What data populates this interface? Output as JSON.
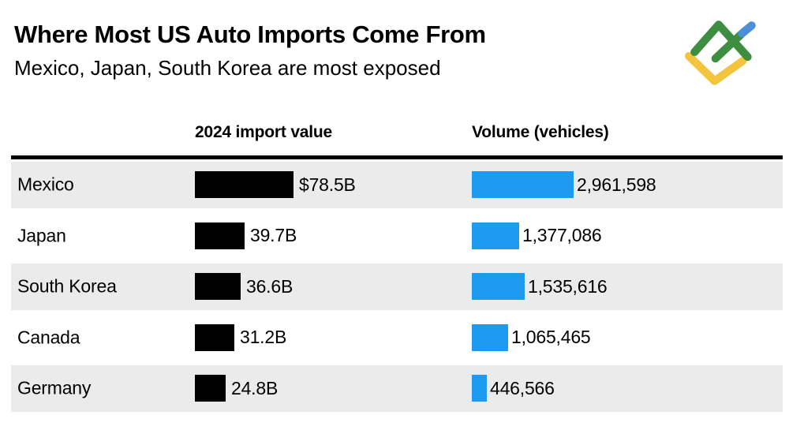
{
  "header": {
    "title": "Where Most US Auto Imports Come From",
    "subtitle": "Mexico, Japan, South Korea are most exposed"
  },
  "logo": {
    "name": "litefinance-logo",
    "colors": {
      "green": "#3e8e41",
      "yellow": "#f3c43e",
      "blue": "#4a90d8"
    }
  },
  "colors": {
    "import_bar": "#000000",
    "volume_bar": "#1e9bf0",
    "row_shade": "#ebebeb",
    "rule": "#000000"
  },
  "table": {
    "columns": [
      {
        "label": "2024 import value"
      },
      {
        "label": "Volume (vehicles)"
      }
    ],
    "rows": [
      {
        "country": "Mexico",
        "import_label": "$78.5B",
        "import_value": 78.5,
        "volume_label": "2,961,598",
        "volume_value": 2961598
      },
      {
        "country": "Japan",
        "import_label": "39.7B",
        "import_value": 39.7,
        "volume_label": "1,377,086",
        "volume_value": 1377086
      },
      {
        "country": "South Korea",
        "import_label": "36.6B",
        "import_value": 36.6,
        "volume_label": "1,535,616",
        "volume_value": 1535616
      },
      {
        "country": "Canada",
        "import_label": "31.2B",
        "import_value": 31.2,
        "volume_label": "1,065,465",
        "volume_value": 1065465
      },
      {
        "country": "Germany",
        "import_label": "24.8B",
        "import_value": 24.8,
        "volume_label": "446,566",
        "volume_value": 446566
      }
    ]
  },
  "chart_data": {
    "type": "bar",
    "orientation": "horizontal",
    "title": "Where Most US Auto Imports Come From",
    "subtitle": "Mexico, Japan, South Korea are most exposed",
    "categories": [
      "Mexico",
      "Japan",
      "South Korea",
      "Canada",
      "Germany"
    ],
    "series": [
      {
        "name": "2024 import value",
        "unit": "USD billions",
        "values": [
          78.5,
          39.7,
          36.6,
          31.2,
          24.8
        ],
        "labels": [
          "$78.5B",
          "39.7B",
          "36.6B",
          "31.2B",
          "24.8B"
        ],
        "color": "#000000"
      },
      {
        "name": "Volume (vehicles)",
        "unit": "vehicles",
        "values": [
          2961598,
          1377086,
          1535616,
          1065465,
          446566
        ],
        "labels": [
          "2,961,598",
          "1,377,086",
          "1,535,616",
          "1,065,465",
          "446,566"
        ],
        "color": "#1e9bf0"
      }
    ],
    "legend_position": "column-headers",
    "grid": false,
    "row_striping": true
  }
}
